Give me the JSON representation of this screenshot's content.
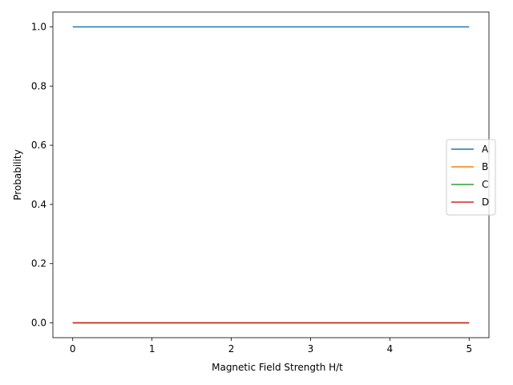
{
  "chart_data": {
    "type": "line",
    "title": "",
    "xlabel": "Magnetic Field Strength H/t",
    "ylabel": "Probability",
    "xlim": [
      -0.25,
      5.25
    ],
    "ylim": [
      -0.05,
      1.05
    ],
    "xticks": [
      0,
      1,
      2,
      3,
      4,
      5
    ],
    "xtick_labels": [
      "0",
      "1",
      "2",
      "3",
      "4",
      "5"
    ],
    "yticks": [
      0.0,
      0.2,
      0.4,
      0.6,
      0.8,
      1.0
    ],
    "ytick_labels": [
      "0.0",
      "0.2",
      "0.4",
      "0.6",
      "0.8",
      "1.0"
    ],
    "grid": false,
    "legend_position": "center-right",
    "series": [
      {
        "name": "A",
        "color": "#1f77b4",
        "x": [
          0,
          1,
          2,
          3,
          4,
          5
        ],
        "y": [
          1,
          1,
          1,
          1,
          1,
          1
        ]
      },
      {
        "name": "B",
        "color": "#ff7f0e",
        "x": [
          0,
          1,
          2,
          3,
          4,
          5
        ],
        "y": [
          0,
          0,
          0,
          0,
          0,
          0
        ]
      },
      {
        "name": "C",
        "color": "#2ca02c",
        "x": [
          0,
          1,
          2,
          3,
          4,
          5
        ],
        "y": [
          0,
          0,
          0,
          0,
          0,
          0
        ]
      },
      {
        "name": "D",
        "color": "#d62728",
        "x": [
          0,
          1,
          2,
          3,
          4,
          5
        ],
        "y": [
          0,
          0,
          0,
          0,
          0,
          0
        ]
      }
    ]
  }
}
